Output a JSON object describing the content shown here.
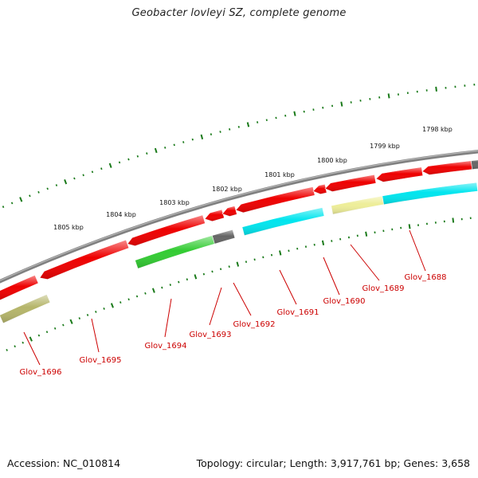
{
  "title": "Geobacter lovleyi SZ, complete genome",
  "footer": {
    "accession": "Accession: NC_010814",
    "summary": "Topology: circular; Length: 3,917,761 bp; Genes: 3,658"
  },
  "colors": {
    "backbone": "#808080",
    "tick": "#1a7a1a",
    "label": "#cc0000",
    "red": "#ee0000",
    "cyan": "#00e5ee",
    "green": "#33cc33",
    "gray": "#666666",
    "khaki": "#b5b56a",
    "paleyellow": "#eeee99"
  },
  "scale_labels": [
    "1798 kbp",
    "1799 kbp",
    "1800 kbp",
    "1801 kbp",
    "1802 kbp",
    "1803 kbp",
    "1804 kbp",
    "1805 kbp"
  ],
  "gene_labels": [
    "Glov_1688",
    "Glov_1689",
    "Glov_1690",
    "Glov_1691",
    "Glov_1692",
    "Glov_1693",
    "Glov_1694",
    "Glov_1695",
    "Glov_1696"
  ]
}
